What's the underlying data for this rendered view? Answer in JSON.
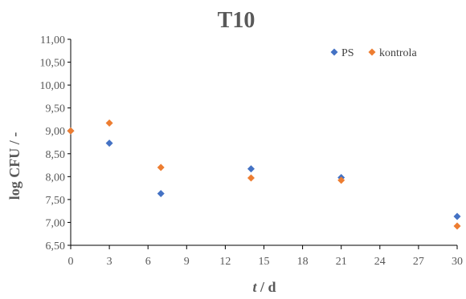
{
  "chart_data": {
    "type": "scatter",
    "title": "T10",
    "xlabel_italic": "t",
    "xlabel_rest": " / d",
    "ylabel": "log CFU / -",
    "xlim": [
      0,
      30
    ],
    "ylim": [
      6.5,
      11.0
    ],
    "xticks": [
      "0",
      "3",
      "6",
      "9",
      "12",
      "15",
      "18",
      "21",
      "24",
      "27",
      "30"
    ],
    "yticks": [
      "6,50",
      "7,00",
      "7,50",
      "8,00",
      "8,50",
      "9,00",
      "9,50",
      "10,00",
      "10,50",
      "11,00"
    ],
    "grid": false,
    "legend_position": "top-right",
    "series": [
      {
        "name": "PS",
        "color": "#4472C4",
        "marker": "diamond",
        "points": [
          [
            0,
            9.0
          ],
          [
            3,
            8.73
          ],
          [
            7,
            7.63
          ],
          [
            14,
            8.17
          ],
          [
            21,
            7.98
          ],
          [
            30,
            7.13
          ]
        ]
      },
      {
        "name": "kontrola",
        "color": "#ED7D31",
        "marker": "diamond",
        "points": [
          [
            0,
            9.0
          ],
          [
            3,
            9.17
          ],
          [
            7,
            8.2
          ],
          [
            14,
            7.97
          ],
          [
            21,
            7.92
          ],
          [
            30,
            6.92
          ]
        ]
      }
    ]
  }
}
